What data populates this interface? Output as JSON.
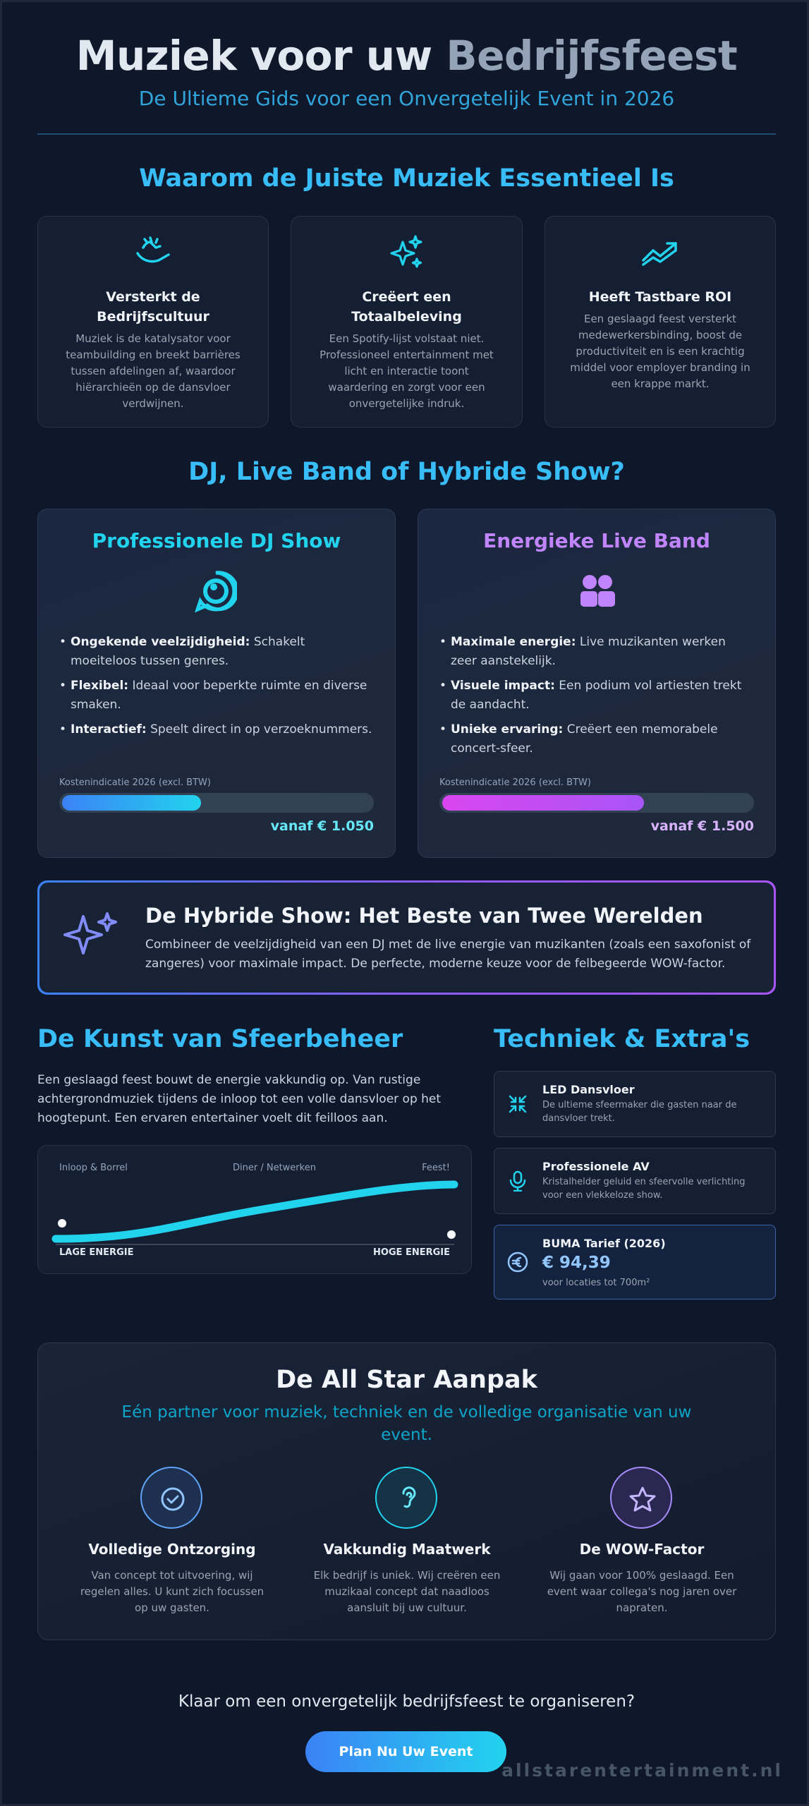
{
  "header": {
    "title_main": "Muziek voor uw ",
    "title_fade": "Bedrijfsfeest",
    "subtitle": "De Ultieme Gids voor een Onvergetelijk Event in 2026"
  },
  "why": {
    "title": "Waarom de Juiste Muziek Essentieel Is",
    "cards": [
      {
        "icon": "handshake-icon",
        "title": "Versterkt de Bedrijfscultuur",
        "text": "Muziek is de katalysator voor teambuilding en breekt barrières tussen afdelingen af, waardoor hiërarchieën op de dansvloer verdwijnen."
      },
      {
        "icon": "sparkles-icon",
        "title": "Creëert een Totaalbeleving",
        "text": "Een Spotify-lijst volstaat niet. Professioneel entertainment met licht en interactie toont waardering en zorgt voor een onvergetelijke indruk."
      },
      {
        "icon": "trend-up-icon",
        "title": "Heeft Tastbare ROI",
        "text": "Een geslaagd feest versterkt medewerkersbinding, boost de productiviteit en is een krachtig middel voor employer branding in een krappe markt."
      }
    ]
  },
  "compare": {
    "title": "DJ, Live Band of Hybride Show?",
    "dj": {
      "title": "Professionele DJ Show",
      "icon": "headset-icon",
      "items": [
        {
          "b": "Ongekende veelzijdigheid:",
          "t": " Schakelt moeiteloos tussen genres."
        },
        {
          "b": "Flexibel:",
          "t": " Ideaal voor beperkte ruimte en diverse smaken."
        },
        {
          "b": "Interactief:",
          "t": " Speelt direct in op verzoeknummers."
        }
      ],
      "cost_label": "Kostenindicatie 2026 (excl. BTW)",
      "cost_level": 0.45,
      "price": "vanaf € 1.050",
      "color": "#22d3ee"
    },
    "band": {
      "title": "Energieke Live Band",
      "icon": "users-icon",
      "items": [
        {
          "b": "Maximale energie:",
          "t": " Live muzikanten werken zeer aanstekelijk."
        },
        {
          "b": "Visuele impact:",
          "t": " Een podium vol artiesten trekt de aandacht."
        },
        {
          "b": "Unieke ervaring:",
          "t": " Creëert een memorabele concert-sfeer."
        }
      ],
      "cost_label": "Kostenindicatie 2026 (excl. BTW)",
      "cost_level": 0.65,
      "price": "vanaf € 1.500",
      "color": "#c084fc"
    }
  },
  "hybrid": {
    "title": "De Hybride Show: Het Beste van Twee Werelden",
    "text": "Combineer de veelzijdigheid van een DJ met de live energie van muzikanten (zoals een saxofonist of zangeres) voor maximale impact. De perfecte, moderne keuze voor de felbegeerde WOW-factor."
  },
  "mood": {
    "title": "De Kunst van Sfeerbeheer",
    "text": "Een geslaagd feest bouwt de energie vakkundig op. Van rustige achtergrondmuziek tijdens de inloop tot een volle dansvloer op het hoogtepunt. Een ervaren entertainer voelt dit feilloos aan.",
    "phases": [
      "Inloop & Borrel",
      "Diner / Netwerken",
      "Feest!"
    ],
    "low": "LAGE ENERGIE",
    "high": "HOGE ENERGIE"
  },
  "tech": {
    "title": "Techniek & Extra's",
    "items": [
      {
        "icon": "compress-icon",
        "title": "LED Dansvloer",
        "text": "De ultieme sfeermaker die gasten naar de dansvloer trekt."
      },
      {
        "icon": "microphone-icon",
        "title": "Professionele AV",
        "text": "Kristalhelder geluid en sfeervolle verlichting voor een vlekkeloze show."
      }
    ],
    "buma": {
      "icon": "euro-icon",
      "title": "BUMA Tarief (2026)",
      "price": "€ 94,39",
      "note": "voor locaties tot 700m²"
    }
  },
  "allstar": {
    "title": "De All Star Aanpak",
    "subtitle": "Eén partner voor muziek, techniek en de volledige organisatie van uw event.",
    "cols": [
      {
        "icon": "check-circle-icon",
        "title": "Volledige Ontzorging",
        "text": "Van concept tot uitvoering, wij regelen alles. U kunt zich focussen op uw gasten."
      },
      {
        "icon": "ear-icon",
        "title": "Vakkundig Maatwerk",
        "text": "Elk bedrijf is uniek. Wij creëren een muzikaal concept dat naadloos aansluit bij uw cultuur."
      },
      {
        "icon": "star-icon",
        "title": "De WOW-Factor",
        "text": "Wij gaan voor 100% geslaagd. Een event waar collega's nog jaren over napraten."
      }
    ]
  },
  "cta": {
    "question": "Klaar om een onvergetelijk bedrijfsfeest te organiseren?",
    "button": "Plan Nu Uw Event",
    "site": "allstarentertainment.nl"
  }
}
